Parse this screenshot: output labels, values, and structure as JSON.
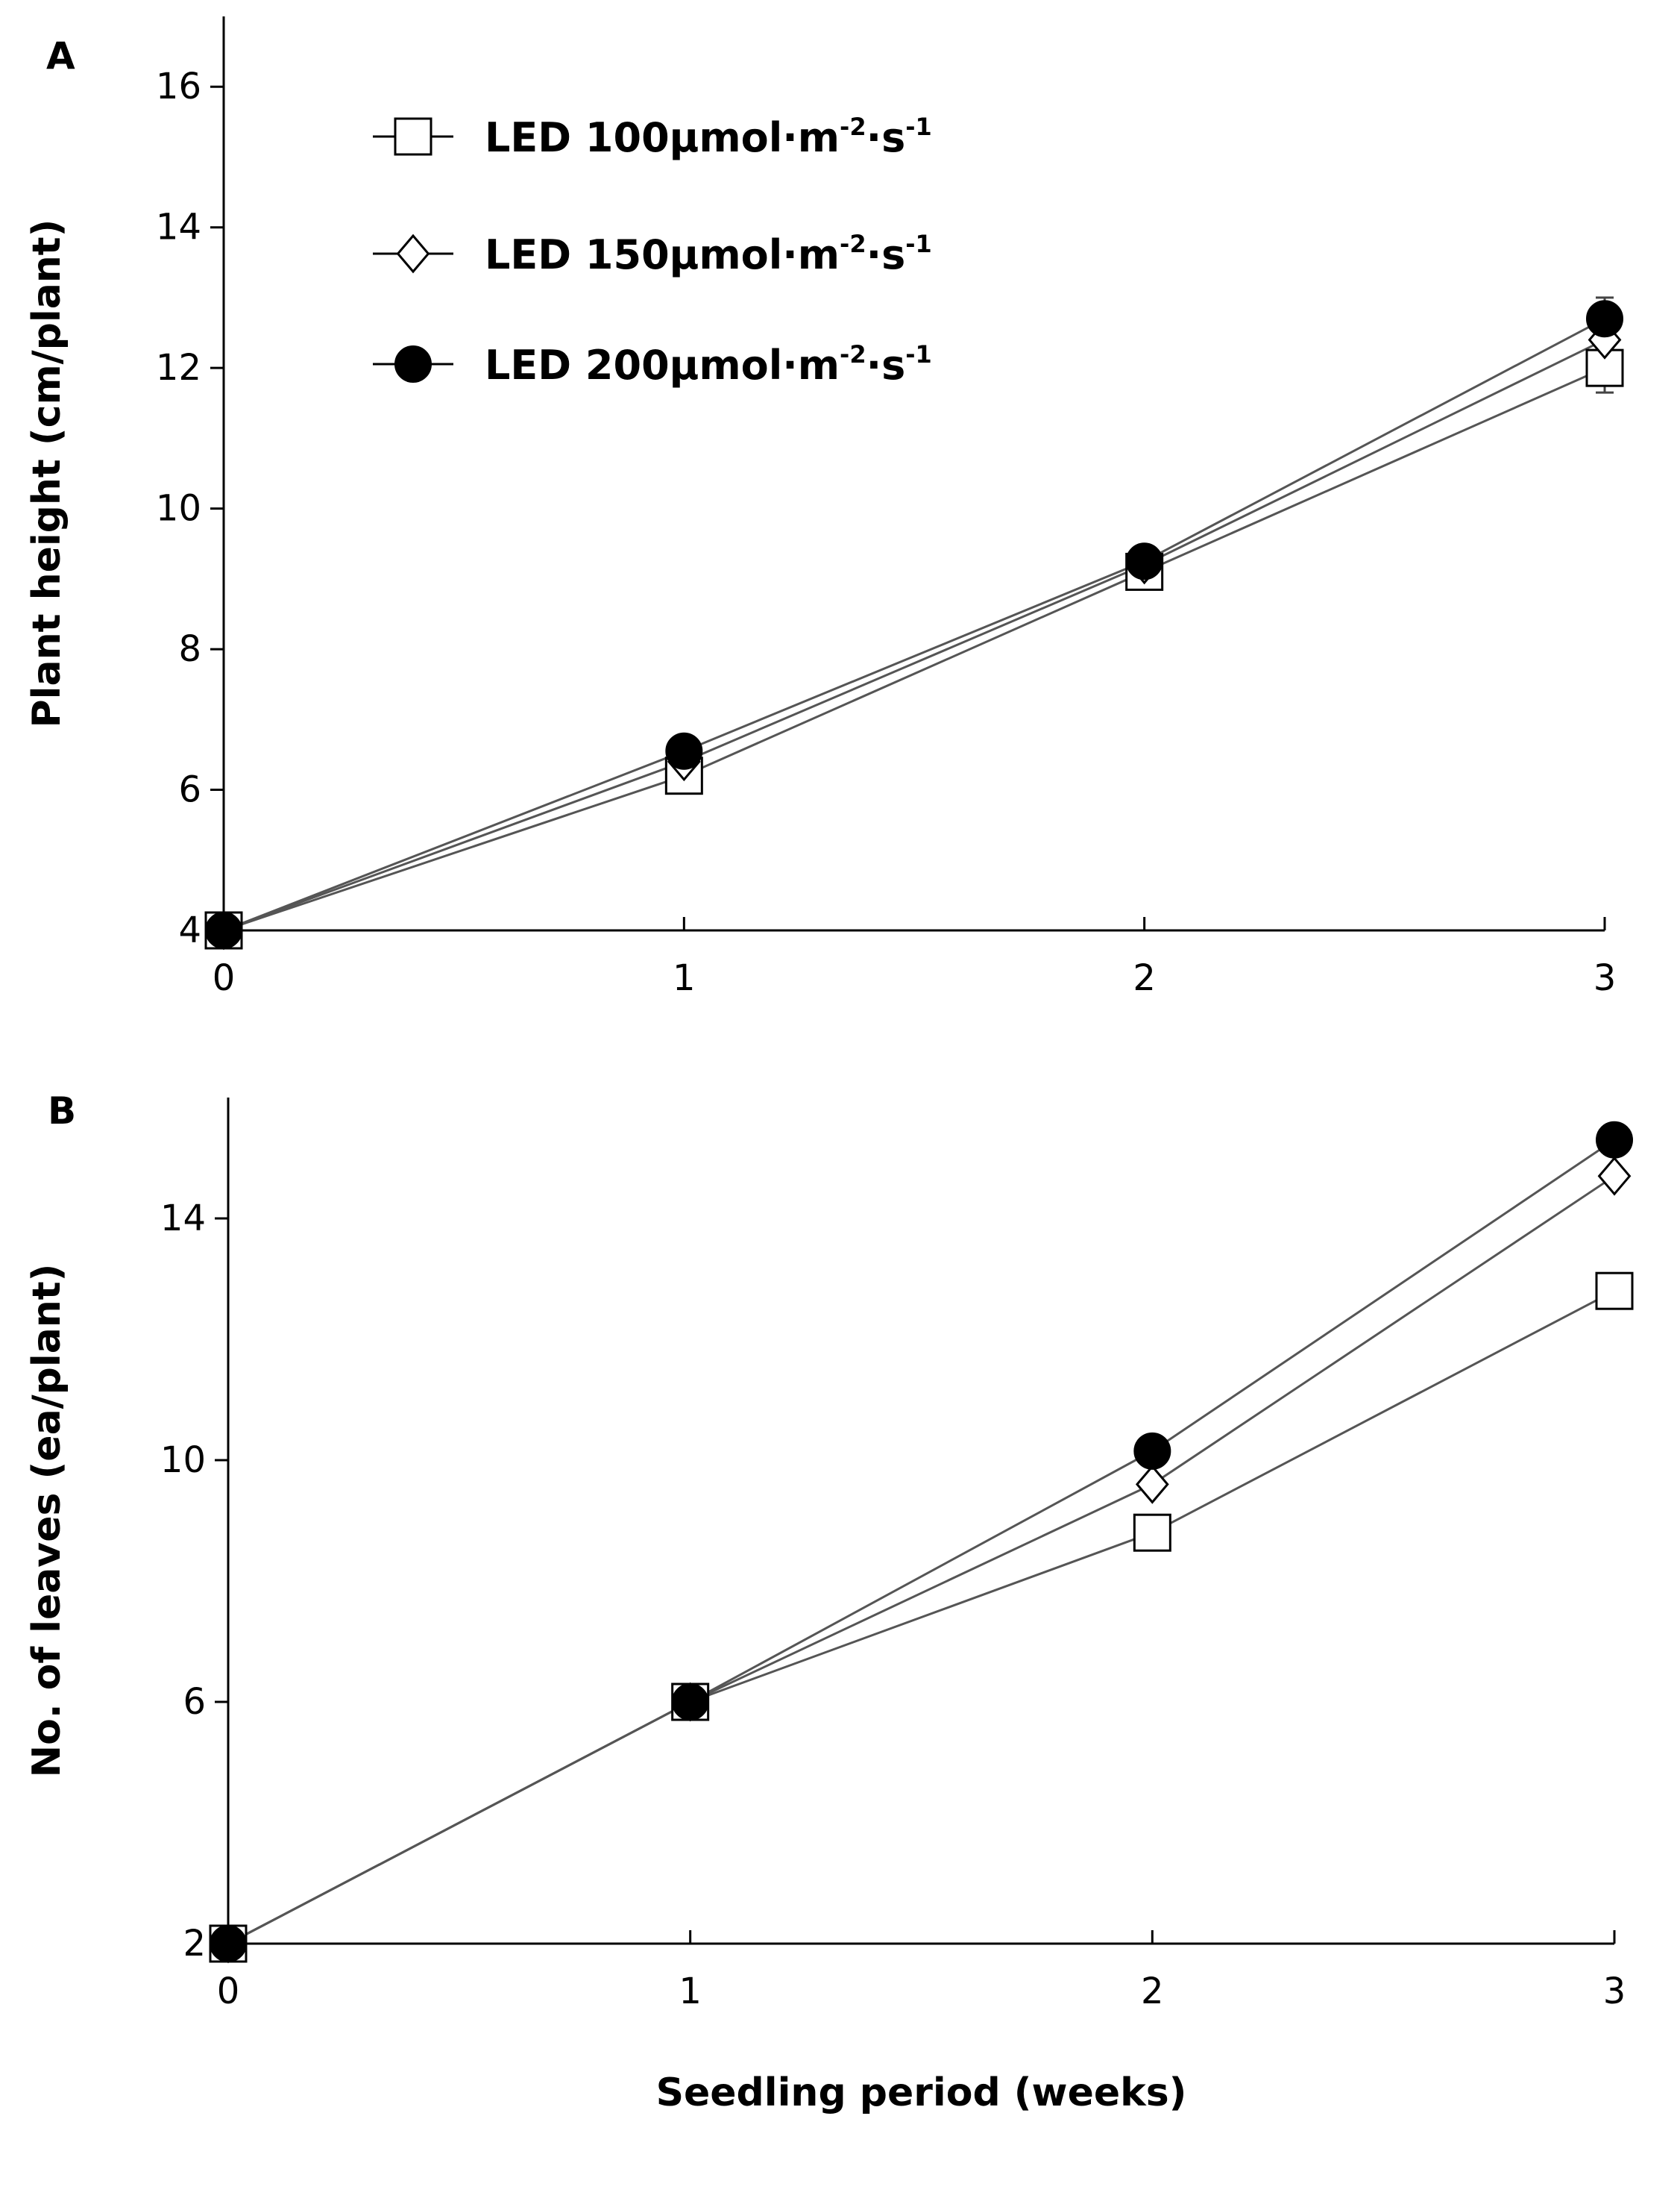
{
  "chart_data": [
    {
      "type": "line",
      "panel_label": "A",
      "ylabel": "Plant height (cm/plant)",
      "xlabel": "",
      "x": [
        0,
        1,
        2,
        3
      ],
      "xticks": [
        "0",
        "1",
        "2",
        "3"
      ],
      "xlim": [
        0,
        3
      ],
      "ylim": [
        4,
        17
      ],
      "yticks": [
        "4",
        "6",
        "8",
        "10",
        "12",
        "14",
        "16"
      ],
      "grid": false,
      "legend": {
        "placement": "top-left",
        "entries": [
          {
            "prefix": "LED 100μmol·m",
            "sup1": "-2",
            "mid": "·s",
            "sup2": "-1"
          },
          {
            "prefix": "LED 150μmol·m",
            "sup1": "-2",
            "mid": "·s",
            "sup2": "-1"
          },
          {
            "prefix": "LED 200μmol·m",
            "sup1": "-2",
            "mid": "·s",
            "sup2": "-1"
          }
        ]
      },
      "series": [
        {
          "name": "LED 100μmol·m-2·s-1",
          "marker": "square-open",
          "values": [
            4.0,
            6.2,
            9.1,
            12.0
          ],
          "errors": [
            0.05,
            0.1,
            0.1,
            0.35
          ]
        },
        {
          "name": "LED 150μmol·m-2·s-1",
          "marker": "diamond-open",
          "values": [
            4.0,
            6.4,
            9.2,
            12.4
          ],
          "errors": [
            0.05,
            0.1,
            0.1,
            0.3
          ]
        },
        {
          "name": "LED 200μmol·m-2·s-1",
          "marker": "circle-filled",
          "values": [
            4.0,
            6.55,
            9.25,
            12.7
          ],
          "errors": [
            0.05,
            0.1,
            0.1,
            0.3
          ]
        }
      ]
    },
    {
      "type": "line",
      "panel_label": "B",
      "ylabel": "No. of leaves (ea/plant)",
      "xlabel": "Seedling period (weeks)",
      "x": [
        0,
        1,
        2,
        3
      ],
      "xticks": [
        "0",
        "1",
        "2",
        "3"
      ],
      "xlim": [
        0,
        3
      ],
      "ylim": [
        2,
        16
      ],
      "yticks": [
        "2",
        "6",
        "10",
        "14"
      ],
      "grid": false,
      "series": [
        {
          "name": "LED 100μmol·m-2·s-1",
          "marker": "square-open",
          "values": [
            2.0,
            6.0,
            8.8,
            12.8
          ],
          "errors": [
            0,
            0,
            0.1,
            0
          ]
        },
        {
          "name": "LED 150μmol·m-2·s-1",
          "marker": "diamond-open",
          "values": [
            2.0,
            6.0,
            9.6,
            14.7
          ],
          "errors": [
            0,
            0,
            0.05,
            0
          ]
        },
        {
          "name": "LED 200μmol·m-2·s-1",
          "marker": "circle-filled",
          "values": [
            2.0,
            6.0,
            10.15,
            15.3
          ],
          "errors": [
            0,
            0,
            0.05,
            0
          ]
        }
      ]
    }
  ]
}
